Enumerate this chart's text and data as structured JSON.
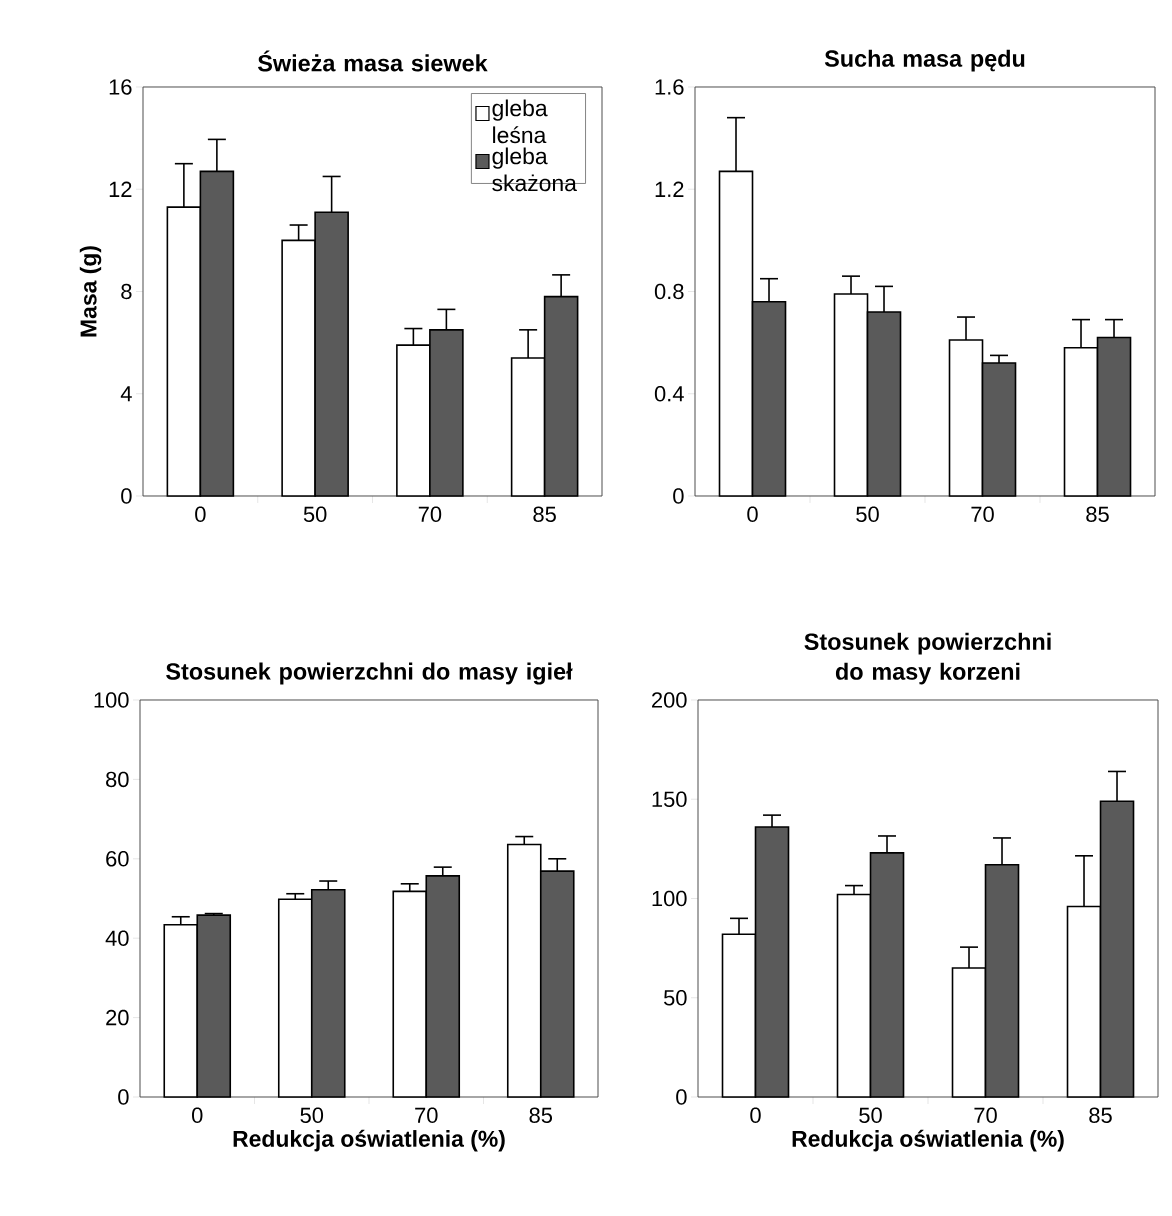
{
  "chart_data": [
    {
      "type": "bar",
      "title": "Świeża masa siewek",
      "ylabel": "Masa (g)",
      "categories": [
        "0",
        "50",
        "70",
        "85"
      ],
      "ylim": [
        0,
        16
      ],
      "yticks": [
        0,
        4,
        8,
        12,
        16
      ],
      "legend": "top right",
      "series": [
        {
          "name": "gleba leśna",
          "color": "#ffffff",
          "values": [
            11.3,
            10.0,
            5.9,
            5.4
          ],
          "errors": [
            1.7,
            0.6,
            0.65,
            1.1
          ]
        },
        {
          "name": "gleba skażona",
          "color": "#5a5a5a",
          "values": [
            12.7,
            11.1,
            6.5,
            7.8
          ],
          "errors": [
            1.25,
            1.4,
            0.8,
            0.85
          ]
        }
      ]
    },
    {
      "type": "bar",
      "title": "Sucha masa pędu",
      "categories": [
        "0",
        "50",
        "70",
        "85"
      ],
      "ylim": [
        0,
        1.6
      ],
      "yticks": [
        0,
        0.4,
        0.8,
        1.2,
        1.6
      ],
      "series": [
        {
          "color": "#ffffff",
          "values": [
            1.27,
            0.79,
            0.61,
            0.58
          ],
          "errors": [
            0.21,
            0.07,
            0.09,
            0.11
          ]
        },
        {
          "color": "#5a5a5a",
          "values": [
            0.76,
            0.72,
            0.52,
            0.62
          ],
          "errors": [
            0.09,
            0.1,
            0.03,
            0.07
          ]
        }
      ]
    },
    {
      "type": "bar",
      "title": "Stosunek powierzchni do masy igieł",
      "xlabel": "Redukcja oświatlenia (%)",
      "categories": [
        "0",
        "50",
        "70",
        "85"
      ],
      "ylim": [
        0,
        100
      ],
      "yticks": [
        0,
        20,
        40,
        60,
        80,
        100
      ],
      "series": [
        {
          "color": "#ffffff",
          "values": [
            43.4,
            49.8,
            51.8,
            63.6
          ],
          "errors": [
            2,
            1.4,
            1.9,
            2
          ]
        },
        {
          "color": "#5a5a5a",
          "values": [
            45.8,
            52.2,
            55.7,
            56.9
          ],
          "errors": [
            0.4,
            2.2,
            2.2,
            3.1
          ]
        }
      ]
    },
    {
      "type": "bar",
      "title": "Stosunek powierzchni do masy korzeni",
      "xlabel": "Redukcja oświatlenia (%)",
      "categories": [
        "0",
        "50",
        "70",
        "85"
      ],
      "ylim": [
        0,
        200
      ],
      "yticks": [
        0,
        50,
        100,
        150,
        200
      ],
      "series": [
        {
          "color": "#ffffff",
          "values": [
            82,
            102,
            65,
            96
          ],
          "errors": [
            8,
            4.5,
            10.5,
            25.5
          ]
        },
        {
          "color": "#5a5a5a",
          "values": [
            136,
            123,
            117,
            149
          ],
          "errors": [
            6,
            8.5,
            13.5,
            15
          ]
        }
      ]
    }
  ]
}
